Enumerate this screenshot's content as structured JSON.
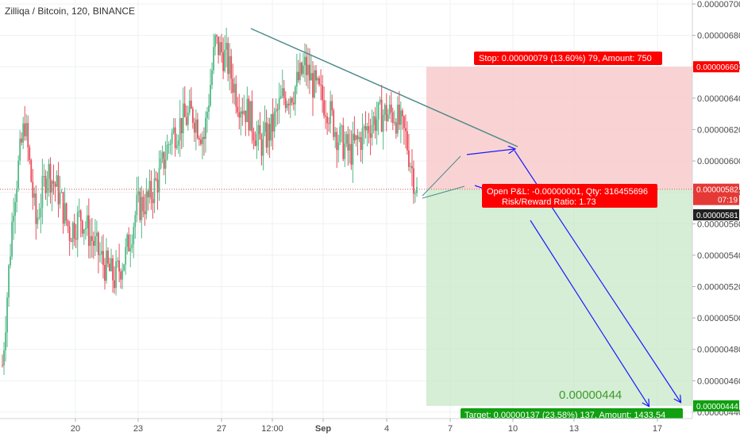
{
  "title": "Zilliqa / Bitcoin, 120, BINANCE",
  "chart_data": {
    "type": "candlestick",
    "symbol": "Zilliqa / Bitcoin",
    "interval": "120",
    "exchange": "BINANCE",
    "x_ticks": [
      "20",
      "23",
      "27",
      "12:00",
      "Sep",
      "4",
      "7",
      "10",
      "13",
      "17"
    ],
    "y_ticks": [
      "0.00000700",
      "0.00000680",
      "0.00000660",
      "0.00000640",
      "0.00000620",
      "0.00000600",
      "0.00000580",
      "0.00000560",
      "0.00000540",
      "0.00000520",
      "0.00000500",
      "0.00000480",
      "0.00000460",
      "0.00000440"
    ],
    "ylim": [
      4.37e-06,
      7.04e-06
    ],
    "grid": true,
    "candles_approx_close": [
      4.7e-06,
      5.75e-06,
      6.25e-06,
      5.6e-06,
      5.95e-06,
      5.8e-06,
      5.55e-06,
      5.65e-06,
      5.5e-06,
      5.35e-06,
      5.25e-06,
      5.4e-06,
      5.7e-06,
      5.75e-06,
      5.9e-06,
      6.15e-06,
      6.25e-06,
      6.3e-06,
      6.15e-06,
      6.75e-06,
      6.65e-06,
      6.4e-06,
      6.3e-06,
      6.1e-06,
      6.2e-06,
      6.4e-06,
      6.45e-06,
      6.6e-06,
      6.45e-06,
      6.35e-06,
      6.15e-06,
      6.05e-06,
      6.15e-06,
      6.25e-06,
      6.3e-06,
      6.3e-06,
      6.15e-06,
      5.8e-06
    ],
    "price_markers": {
      "stop": "0.00000660",
      "current": "0.00000582",
      "current_countdown": "07:19",
      "last": "0.00000581",
      "target": "0.00000444"
    },
    "position": {
      "stop_label": "Stop: 0.00000079 (13.60%) 79, Amount: 750",
      "pnl_label": "Open P&L: -0.00000001, Qty: 316455696",
      "rr_label": "Risk/Reward Ratio: 1.73",
      "target_label": "Target: 0.00000137 (23.58%) 137, Amount: 1433.54",
      "target_price_text": "0.00000444"
    },
    "colors": {
      "up": "#53b987",
      "down": "#eb4d5c",
      "stop_zone": "#f8c8c8",
      "target_zone": "#cbeacb",
      "stop_label_bg": "#ff0000",
      "target_label_bg": "#10a010",
      "trendline": "#4f8a8b",
      "arrows": "#1a1aff"
    }
  }
}
